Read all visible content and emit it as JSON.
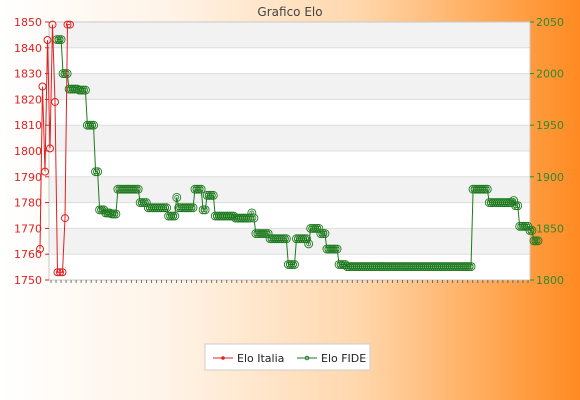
{
  "chart_data": {
    "type": "line",
    "title": "Grafico Elo",
    "legend_position": "bottom-center",
    "grid": true,
    "y_left": {
      "range": [
        1750,
        1850
      ],
      "ticks": [
        1750,
        1760,
        1770,
        1780,
        1790,
        1800,
        1810,
        1820,
        1830,
        1840,
        1850
      ],
      "color": "#e02020"
    },
    "y_right": {
      "range": [
        1800,
        2050
      ],
      "ticks": [
        1800,
        1850,
        1900,
        1950,
        2000,
        2050
      ],
      "color": "#2e8b2e"
    },
    "series": [
      {
        "name": "Elo Italia",
        "axis": "left",
        "color": "#e02020",
        "values": [
          1762,
          1825,
          1792,
          1843,
          1801,
          1849,
          1819,
          1753,
          1753,
          1753,
          1774,
          1849,
          1849
        ]
      },
      {
        "name": "Elo FIDE",
        "axis": "right",
        "color": "#1e7a1e",
        "values": [
          2033,
          2033,
          2033,
          2000,
          2000,
          2000,
          1985,
          1985,
          1985,
          1985,
          1985,
          1984,
          1984,
          1984,
          1984,
          1950,
          1950,
          1950,
          1950,
          1905,
          1905,
          1868,
          1868,
          1868,
          1865,
          1865,
          1865,
          1864,
          1864,
          1864,
          1888,
          1888,
          1888,
          1888,
          1888,
          1888,
          1888,
          1888,
          1888,
          1888,
          1888,
          1875,
          1875,
          1875,
          1875,
          1870,
          1870,
          1870,
          1870,
          1870,
          1870,
          1870,
          1870,
          1870,
          1870,
          1862,
          1862,
          1862,
          1862,
          1880,
          1870,
          1870,
          1870,
          1870,
          1870,
          1870,
          1870,
          1870,
          1888,
          1888,
          1888,
          1888,
          1868,
          1868,
          1882,
          1882,
          1882,
          1882,
          1862,
          1862,
          1862,
          1862,
          1862,
          1862,
          1862,
          1862,
          1862,
          1862,
          1860,
          1860,
          1860,
          1860,
          1860,
          1860,
          1860,
          1860,
          1865,
          1860,
          1845,
          1845,
          1845,
          1845,
          1845,
          1845,
          1845,
          1840,
          1840,
          1840,
          1840,
          1840,
          1840,
          1840,
          1840,
          1840,
          1815,
          1815,
          1815,
          1815,
          1840,
          1840,
          1840,
          1840,
          1840,
          1840,
          1835,
          1850,
          1850,
          1850,
          1850,
          1850,
          1845,
          1845,
          1845,
          1830,
          1830,
          1830,
          1830,
          1830,
          1830,
          1815,
          1815,
          1815,
          1815,
          1813,
          1813,
          1813,
          1813,
          1813,
          1813,
          1813,
          1813,
          1813,
          1813,
          1813,
          1813,
          1813,
          1813,
          1813,
          1813,
          1813,
          1813,
          1813,
          1813,
          1813,
          1813,
          1813,
          1813,
          1813,
          1813,
          1813,
          1813,
          1813,
          1813,
          1813,
          1813,
          1813,
          1813,
          1813,
          1813,
          1813,
          1813,
          1813,
          1813,
          1813,
          1813,
          1813,
          1813,
          1813,
          1813,
          1813,
          1813,
          1813,
          1813,
          1813,
          1813,
          1813,
          1813,
          1813,
          1813,
          1813,
          1813,
          1813,
          1813,
          1813,
          1813,
          1888,
          1888,
          1888,
          1888,
          1888,
          1888,
          1888,
          1888,
          1875,
          1875,
          1875,
          1875,
          1875,
          1875,
          1875,
          1875,
          1875,
          1875,
          1875,
          1875,
          1877,
          1872,
          1872,
          1852,
          1852,
          1852,
          1852,
          1852,
          1848,
          1848,
          1838,
          1838,
          1838
        ]
      }
    ]
  }
}
